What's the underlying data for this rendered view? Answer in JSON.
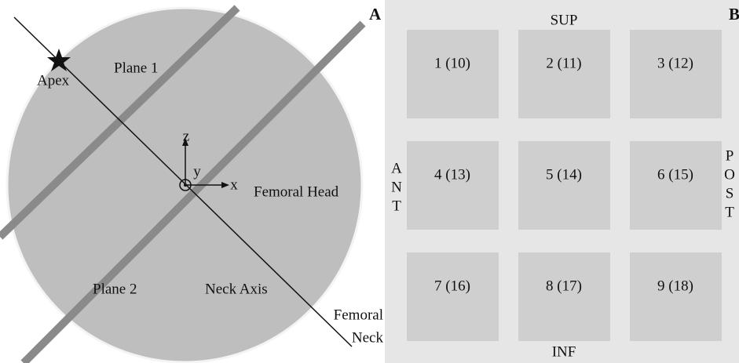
{
  "panel_a": {
    "letter": "A",
    "plane_1": "Plane 1",
    "plane_2": "Plane 2",
    "apex": "Apex",
    "femoral_head": "Femoral Head",
    "neck_axis": "Neck Axis",
    "femoral_neck": [
      "Femoral",
      "Neck"
    ],
    "axes": {
      "x": "x",
      "y": "y",
      "z": "z"
    }
  },
  "panel_b": {
    "letter": "B",
    "sup": "SUP",
    "inf": "INF",
    "ant": [
      "A",
      "N",
      "T"
    ],
    "post": [
      "P",
      "O",
      "S",
      "T"
    ],
    "cells": [
      "1 (10)",
      "2 (11)",
      "3 (12)",
      "4 (13)",
      "5 (14)",
      "6 (15)",
      "7 (16)",
      "8 (17)",
      "9 (18)"
    ]
  }
}
